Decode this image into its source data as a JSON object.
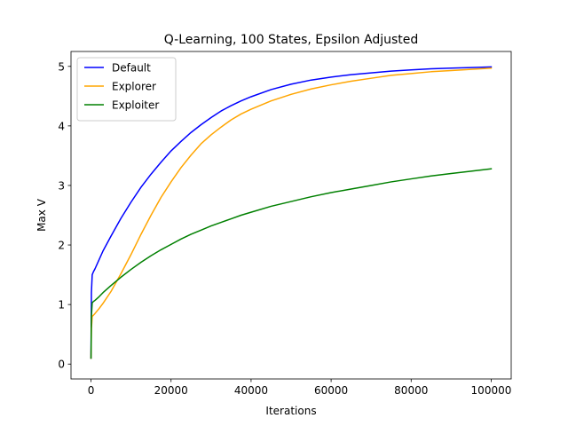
{
  "chart_data": {
    "type": "line",
    "title": "Q-Learning, 100 States, Epsilon Adjusted",
    "xlabel": "Iterations",
    "ylabel": "Max V",
    "xlim": [
      -5000,
      105000
    ],
    "ylim": [
      -0.25,
      5.25
    ],
    "xticks": [
      0,
      20000,
      40000,
      60000,
      80000,
      100000
    ],
    "yticks": [
      0,
      1,
      2,
      3,
      4,
      5
    ],
    "grid": false,
    "legend_position": "upper-left",
    "series": [
      {
        "name": "Default",
        "color": "#0000ff",
        "x": [
          0,
          100,
          300,
          600,
          1000,
          2000,
          3000,
          5000,
          7500,
          10000,
          12500,
          15000,
          17500,
          20000,
          22500,
          25000,
          27500,
          30000,
          32500,
          35000,
          37500,
          40000,
          45000,
          50000,
          55000,
          60000,
          65000,
          70000,
          75000,
          80000,
          85000,
          90000,
          95000,
          100000
        ],
        "y": [
          0.1,
          1.2,
          1.5,
          1.55,
          1.6,
          1.75,
          1.9,
          2.15,
          2.45,
          2.72,
          2.97,
          3.19,
          3.39,
          3.58,
          3.74,
          3.89,
          4.02,
          4.14,
          4.25,
          4.34,
          4.42,
          4.49,
          4.61,
          4.7,
          4.77,
          4.82,
          4.86,
          4.89,
          4.92,
          4.94,
          4.96,
          4.97,
          4.98,
          4.99
        ]
      },
      {
        "name": "Explorer",
        "color": "#ffa500",
        "x": [
          0,
          100,
          300,
          600,
          1000,
          2000,
          3000,
          5000,
          7500,
          10000,
          12500,
          15000,
          17500,
          20000,
          22500,
          25000,
          27500,
          30000,
          32500,
          35000,
          37500,
          40000,
          45000,
          50000,
          55000,
          60000,
          65000,
          70000,
          75000,
          80000,
          85000,
          90000,
          95000,
          100000
        ],
        "y": [
          0.1,
          0.6,
          0.8,
          0.82,
          0.85,
          0.93,
          1.02,
          1.22,
          1.52,
          1.84,
          2.18,
          2.5,
          2.8,
          3.06,
          3.3,
          3.51,
          3.7,
          3.85,
          3.98,
          4.1,
          4.2,
          4.28,
          4.42,
          4.53,
          4.62,
          4.69,
          4.75,
          4.8,
          4.85,
          4.88,
          4.91,
          4.93,
          4.95,
          4.97
        ]
      },
      {
        "name": "Exploiter",
        "color": "#008000",
        "x": [
          0,
          100,
          300,
          600,
          1000,
          2000,
          3000,
          5000,
          7500,
          10000,
          12500,
          15000,
          17500,
          20000,
          22500,
          25000,
          27500,
          30000,
          32500,
          35000,
          37500,
          40000,
          45000,
          50000,
          55000,
          60000,
          65000,
          70000,
          75000,
          80000,
          85000,
          90000,
          95000,
          100000
        ],
        "y": [
          0.1,
          0.8,
          1.03,
          1.05,
          1.07,
          1.13,
          1.2,
          1.32,
          1.46,
          1.59,
          1.71,
          1.82,
          1.92,
          2.01,
          2.1,
          2.18,
          2.25,
          2.32,
          2.38,
          2.44,
          2.5,
          2.55,
          2.65,
          2.73,
          2.81,
          2.88,
          2.94,
          3.0,
          3.06,
          3.11,
          3.16,
          3.2,
          3.24,
          3.28
        ]
      }
    ]
  }
}
